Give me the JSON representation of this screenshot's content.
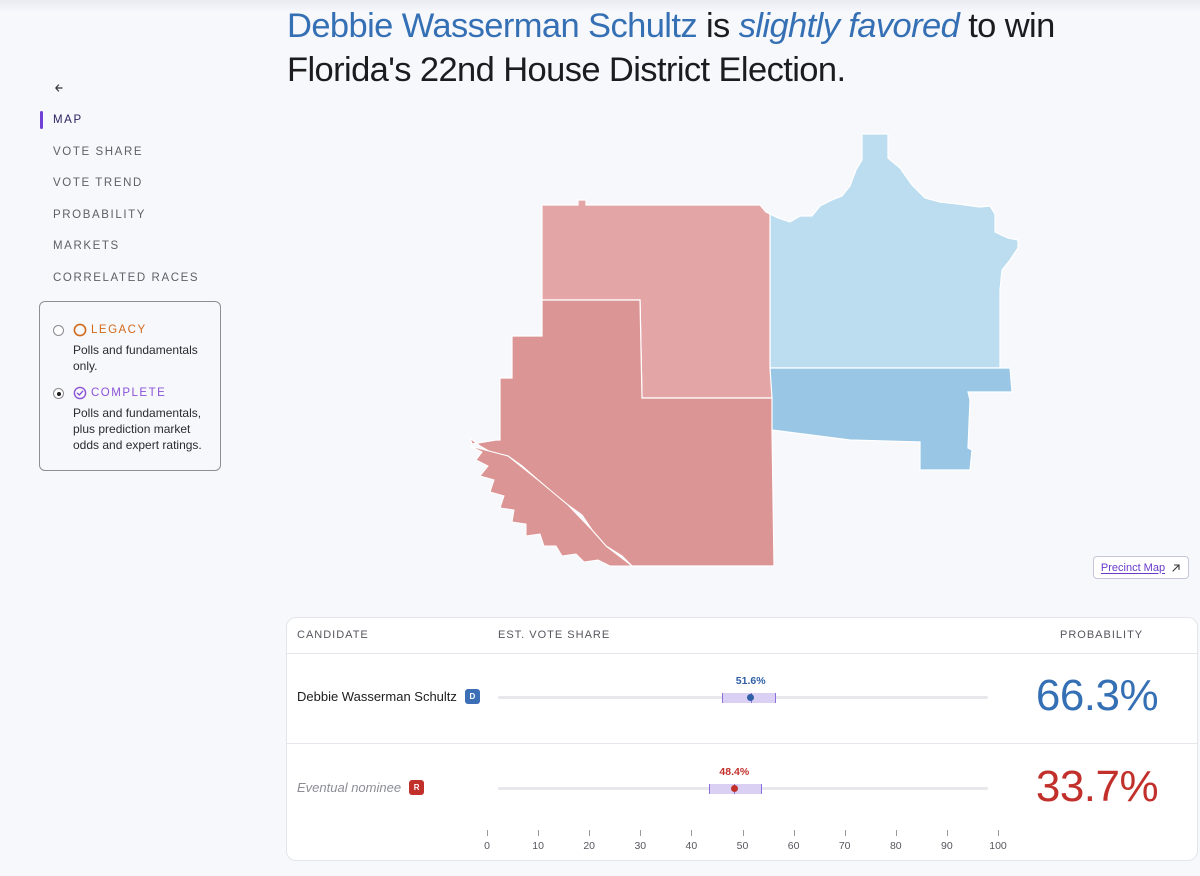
{
  "headline": {
    "candidate": "Debbie Wasserman Schultz",
    "is": " is ",
    "qualifier": "slightly favored",
    "rest": " to win Florida's 22nd House District Election."
  },
  "nav": {
    "back_icon": "arrow-left-icon",
    "items": [
      "MAP",
      "VOTE SHARE",
      "VOTE TREND",
      "PROBABILITY",
      "MARKETS",
      "CORRELATED RACES"
    ],
    "active": "MAP"
  },
  "models": {
    "legacy": {
      "title": "LEGACY",
      "desc": "Polls and fundamentals only.",
      "selected": false,
      "color": "#d06a1c"
    },
    "complete": {
      "title": "COMPLETE",
      "desc": "Polls and fundamentals, plus prediction market odds and expert ratings.",
      "selected": true,
      "color": "#8b53d6"
    }
  },
  "map": {
    "precinct_label": "Precinct Map",
    "colors": {
      "dem_light": "#bcdcf0",
      "dem": "#98c6e4",
      "rep_light": "#e3a5a6",
      "rep": "#dc9595"
    }
  },
  "table": {
    "headers": {
      "candidate": "CANDIDATE",
      "share": "EST. VOTE SHARE",
      "probability": "PROBABILITY"
    },
    "rows": [
      {
        "name": "Debbie Wasserman Schultz",
        "party": "D",
        "share": 51.6,
        "share_label": "51.6%",
        "low": 46.0,
        "high": 56.5,
        "probability": "66.3%",
        "nominee": false
      },
      {
        "name": "Eventual nominee",
        "party": "R",
        "share": 48.4,
        "share_label": "48.4%",
        "low": 43.5,
        "high": 53.8,
        "probability": "33.7%",
        "nominee": true
      }
    ],
    "axis_ticks": [
      0,
      10,
      20,
      30,
      40,
      50,
      60,
      70,
      80,
      90,
      100
    ]
  }
}
